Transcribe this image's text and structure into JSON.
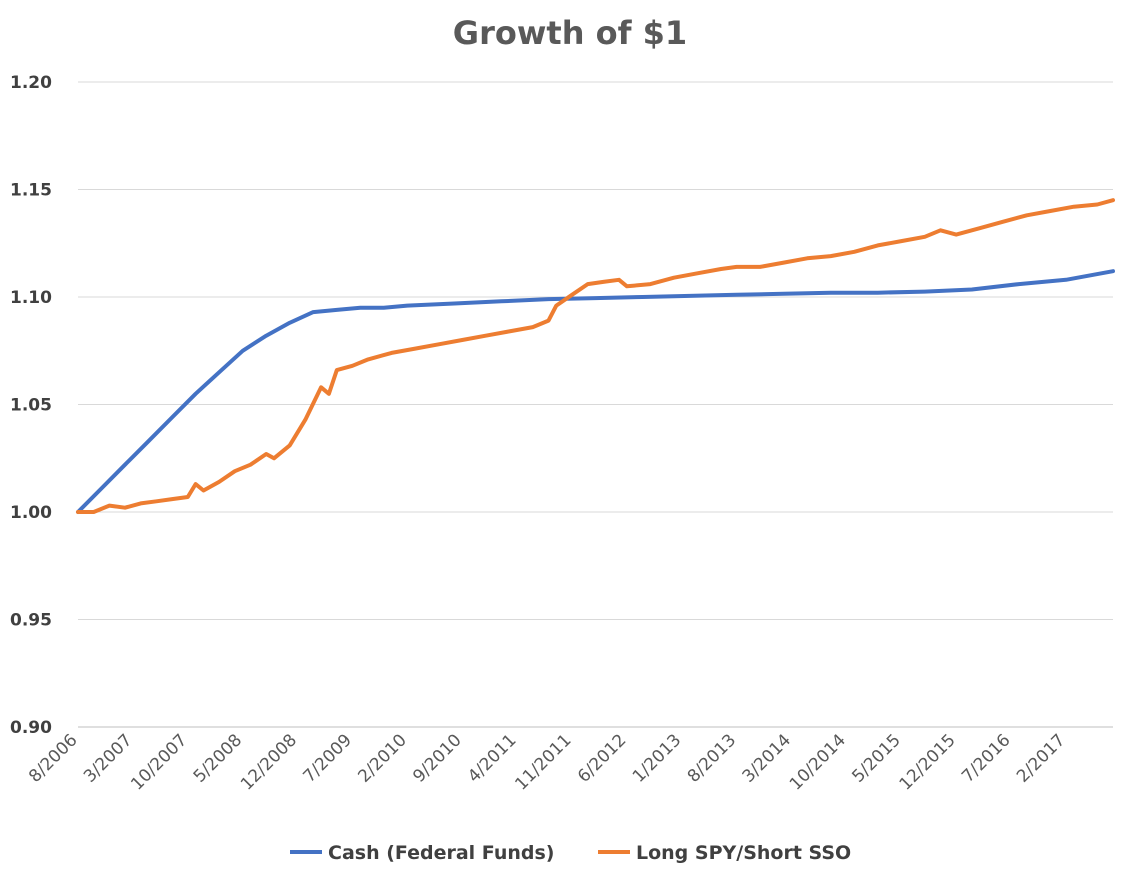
{
  "chart_data": {
    "type": "line",
    "title": "Growth of $1",
    "xlabel": "",
    "ylabel": "",
    "ylim": [
      0.9,
      1.2
    ],
    "y_ticks": [
      "0.90",
      "0.95",
      "1.00",
      "1.05",
      "1.10",
      "1.15",
      "1.20"
    ],
    "y_tick_values": [
      0.9,
      0.95,
      1.0,
      1.05,
      1.1,
      1.15,
      1.2
    ],
    "x_ticks": [
      "8/2006",
      "3/2007",
      "10/2007",
      "5/2008",
      "12/2008",
      "7/2009",
      "2/2010",
      "9/2010",
      "4/2011",
      "11/2011",
      "6/2012",
      "1/2013",
      "8/2013",
      "3/2014",
      "10/2014",
      "5/2015",
      "12/2015",
      "7/2016",
      "2/2017"
    ],
    "x_start": "8/2006",
    "x_end": "8/2017",
    "grid": true,
    "legend_position": "bottom",
    "series": [
      {
        "name": "Cash (Federal Funds)",
        "color": "#4472C4",
        "points": [
          [
            "8/2006",
            1.0
          ],
          [
            "11/2006",
            1.011
          ],
          [
            "2/2007",
            1.022
          ],
          [
            "5/2007",
            1.033
          ],
          [
            "8/2007",
            1.044
          ],
          [
            "11/2007",
            1.055
          ],
          [
            "2/2008",
            1.065
          ],
          [
            "5/2008",
            1.075
          ],
          [
            "8/2008",
            1.082
          ],
          [
            "11/2008",
            1.088
          ],
          [
            "2/2009",
            1.093
          ],
          [
            "5/2009",
            1.094
          ],
          [
            "8/2009",
            1.095
          ],
          [
            "11/2009",
            1.095
          ],
          [
            "2/2010",
            1.096
          ],
          [
            "8/2010",
            1.097
          ],
          [
            "2/2011",
            1.098
          ],
          [
            "8/2011",
            1.099
          ],
          [
            "2/2012",
            1.0995
          ],
          [
            "8/2012",
            1.1
          ],
          [
            "2/2013",
            1.1005
          ],
          [
            "8/2013",
            1.101
          ],
          [
            "2/2014",
            1.1015
          ],
          [
            "8/2014",
            1.102
          ],
          [
            "2/2015",
            1.102
          ],
          [
            "8/2015",
            1.1025
          ],
          [
            "2/2016",
            1.1035
          ],
          [
            "8/2016",
            1.106
          ],
          [
            "2/2017",
            1.108
          ],
          [
            "8/2017",
            1.112
          ]
        ]
      },
      {
        "name": "Long SPY/Short SSO",
        "color": "#ED7D31",
        "points": [
          [
            "8/2006",
            1.0
          ],
          [
            "10/2006",
            1.0
          ],
          [
            "12/2006",
            1.003
          ],
          [
            "2/2007",
            1.002
          ],
          [
            "4/2007",
            1.004
          ],
          [
            "6/2007",
            1.005
          ],
          [
            "8/2007",
            1.006
          ],
          [
            "10/2007",
            1.007
          ],
          [
            "11/2007",
            1.013
          ],
          [
            "12/2007",
            1.01
          ],
          [
            "2/2008",
            1.014
          ],
          [
            "4/2008",
            1.019
          ],
          [
            "6/2008",
            1.022
          ],
          [
            "8/2008",
            1.027
          ],
          [
            "9/2008",
            1.025
          ],
          [
            "11/2008",
            1.031
          ],
          [
            "1/2009",
            1.043
          ],
          [
            "3/2009",
            1.058
          ],
          [
            "4/2009",
            1.055
          ],
          [
            "5/2009",
            1.066
          ],
          [
            "7/2009",
            1.068
          ],
          [
            "9/2009",
            1.071
          ],
          [
            "12/2009",
            1.074
          ],
          [
            "3/2010",
            1.076
          ],
          [
            "6/2010",
            1.078
          ],
          [
            "9/2010",
            1.08
          ],
          [
            "12/2010",
            1.082
          ],
          [
            "3/2011",
            1.084
          ],
          [
            "6/2011",
            1.086
          ],
          [
            "8/2011",
            1.089
          ],
          [
            "9/2011",
            1.096
          ],
          [
            "11/2011",
            1.101
          ],
          [
            "1/2012",
            1.106
          ],
          [
            "3/2012",
            1.107
          ],
          [
            "5/2012",
            1.108
          ],
          [
            "6/2012",
            1.105
          ],
          [
            "9/2012",
            1.106
          ],
          [
            "12/2012",
            1.109
          ],
          [
            "3/2013",
            1.111
          ],
          [
            "6/2013",
            1.113
          ],
          [
            "8/2013",
            1.114
          ],
          [
            "11/2013",
            1.114
          ],
          [
            "2/2014",
            1.116
          ],
          [
            "5/2014",
            1.118
          ],
          [
            "8/2014",
            1.119
          ],
          [
            "11/2014",
            1.121
          ],
          [
            "2/2015",
            1.124
          ],
          [
            "5/2015",
            1.126
          ],
          [
            "8/2015",
            1.128
          ],
          [
            "10/2015",
            1.131
          ],
          [
            "12/2015",
            1.129
          ],
          [
            "3/2016",
            1.132
          ],
          [
            "6/2016",
            1.135
          ],
          [
            "9/2016",
            1.138
          ],
          [
            "12/2016",
            1.14
          ],
          [
            "3/2017",
            1.142
          ],
          [
            "6/2017",
            1.143
          ],
          [
            "8/2017",
            1.145
          ]
        ]
      }
    ]
  }
}
